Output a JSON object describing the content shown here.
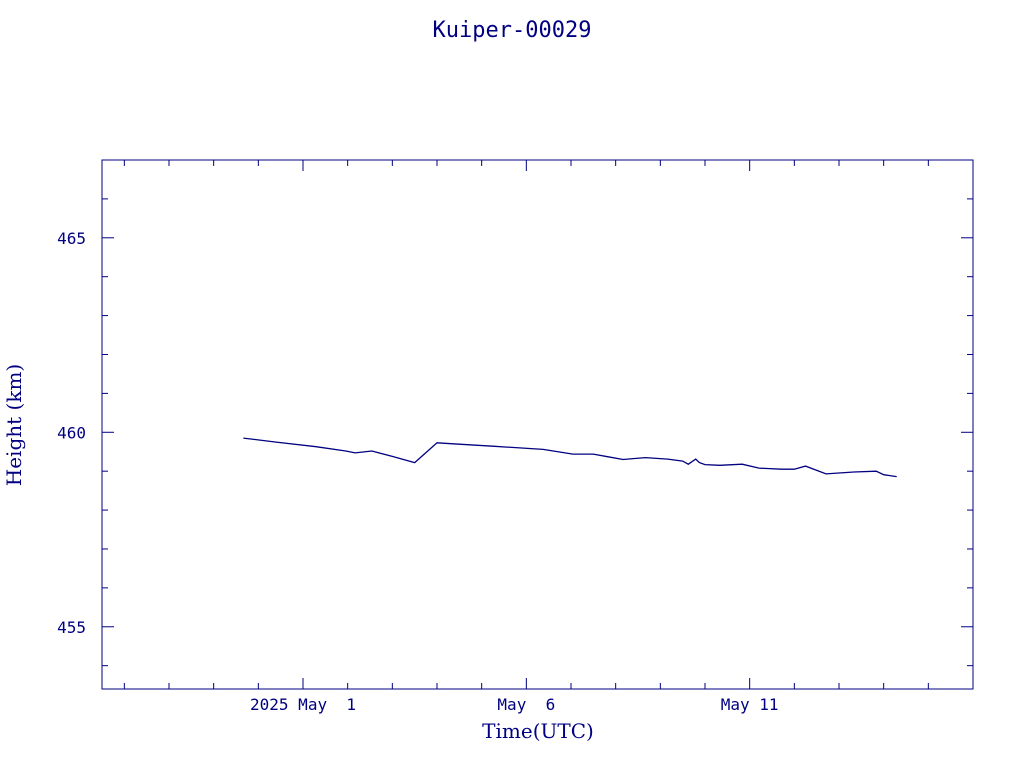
{
  "chart_data": {
    "type": "line",
    "title": "Kuiper-00029",
    "xlabel": "Time(UTC)",
    "ylabel": "Height (km)",
    "x_tick_labels": [
      "2025 May  1",
      "May  6",
      "May 11"
    ],
    "x_tick_dates": [
      "2025-05-01",
      "2025-05-06",
      "2025-05-11"
    ],
    "y_tick_labels": [
      "465",
      "460",
      "455"
    ],
    "y_ticks": [
      465,
      460,
      455
    ],
    "xlim": [
      "2025-04-26T12:00",
      "2025-05-16T00:00"
    ],
    "ylim": [
      453.4,
      467.0
    ],
    "grid": false,
    "color": "#000080",
    "series": [
      {
        "x": [
          "2025-04-29T16:00",
          "2025-04-30T09:00",
          "2025-05-01T07:00",
          "2025-05-01T23:00",
          "2025-05-02T04:00",
          "2025-05-02T13:00",
          "2025-05-03T00:00",
          "2025-05-03T12:00",
          "2025-05-04T00:00",
          "2025-05-04T13:00",
          "2025-05-05T07:00",
          "2025-05-06T09:00",
          "2025-05-07T01:00",
          "2025-05-07T12:00",
          "2025-05-07T20:00",
          "2025-05-08T04:00",
          "2025-05-08T16:00",
          "2025-05-09T04:00",
          "2025-05-09T12:00",
          "2025-05-09T15:00",
          "2025-05-09T19:00",
          "2025-05-09T21:00",
          "2025-05-10T00:00",
          "2025-05-10T08:00",
          "2025-05-10T20:00",
          "2025-05-11T05:00",
          "2025-05-11T17:00",
          "2025-05-12T00:00",
          "2025-05-12T06:00",
          "2025-05-12T17:00",
          "2025-05-13T08:00",
          "2025-05-13T20:00",
          "2025-05-14T00:00",
          "2025-05-14T07:00"
        ],
        "y": [
          459.85,
          459.75,
          459.63,
          459.52,
          459.47,
          459.52,
          459.38,
          459.22,
          459.73,
          459.69,
          459.64,
          459.56,
          459.44,
          459.44,
          459.37,
          459.3,
          459.35,
          459.31,
          459.26,
          459.18,
          459.31,
          459.22,
          459.17,
          459.15,
          459.18,
          459.08,
          459.05,
          459.05,
          459.13,
          458.93,
          458.98,
          459.0,
          458.91,
          458.86
        ]
      }
    ]
  }
}
